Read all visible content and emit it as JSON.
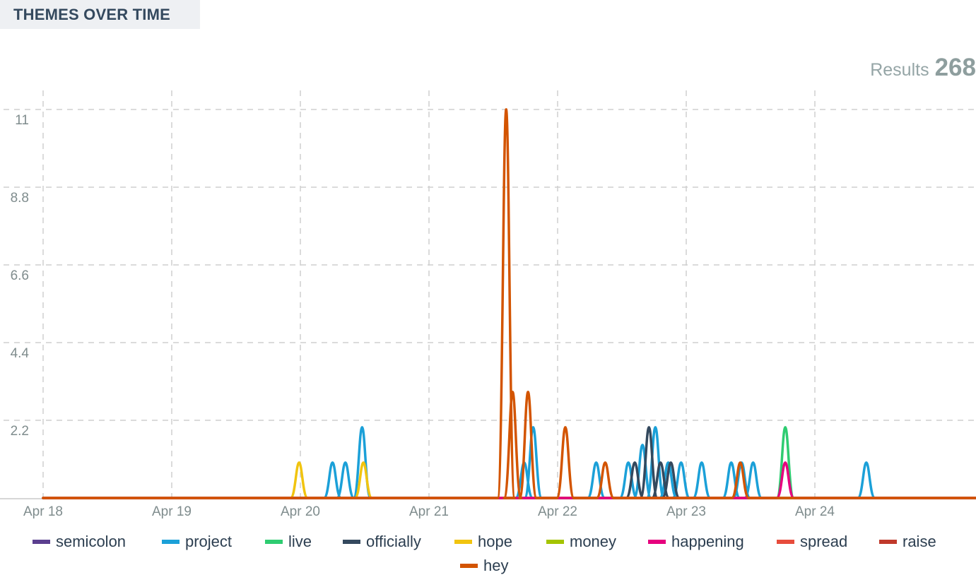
{
  "header": {
    "title": "THEMES OVER TIME"
  },
  "results": {
    "label": "Results",
    "count": "268"
  },
  "chart_data": {
    "type": "line",
    "title": "THEMES OVER TIME",
    "xlabel": "",
    "ylabel": "",
    "x_ticks": [
      "Apr 18",
      "Apr 19",
      "Apr 20",
      "Apr 21",
      "Apr 22",
      "Apr 23",
      "Apr 24"
    ],
    "y_ticks": [
      "2.2",
      "4.4",
      "6.6",
      "8.8",
      "11"
    ],
    "xlim_days": [
      0,
      7.25
    ],
    "ylim": [
      0,
      11
    ],
    "grid": true,
    "legend_position": "bottom",
    "series": [
      {
        "name": "semicolon",
        "color": "#5b3f8f",
        "points": []
      },
      {
        "name": "project",
        "color": "#1ba0d8",
        "points": [
          [
            2.25,
            1
          ],
          [
            2.35,
            1
          ],
          [
            2.48,
            2
          ],
          [
            3.74,
            1
          ],
          [
            3.81,
            2
          ],
          [
            4.3,
            1
          ],
          [
            4.55,
            1
          ],
          [
            4.66,
            1.5
          ],
          [
            4.76,
            2
          ],
          [
            4.86,
            1
          ],
          [
            4.96,
            1
          ],
          [
            5.12,
            1
          ],
          [
            5.35,
            1
          ],
          [
            5.43,
            1
          ],
          [
            5.52,
            1
          ],
          [
            6.4,
            1
          ]
        ]
      },
      {
        "name": "live",
        "color": "#2ecc71",
        "points": [
          [
            5.77,
            2
          ]
        ]
      },
      {
        "name": "officially",
        "color": "#34495e",
        "points": [
          [
            4.6,
            1
          ],
          [
            4.71,
            2
          ],
          [
            4.8,
            1
          ],
          [
            4.88,
            1
          ],
          [
            5.02,
            0
          ]
        ]
      },
      {
        "name": "hope",
        "color": "#f1c40f",
        "points": [
          [
            1.99,
            1
          ],
          [
            2.49,
            1
          ]
        ]
      },
      {
        "name": "money",
        "color": "#a4c400",
        "points": []
      },
      {
        "name": "happening",
        "color": "#e6007e",
        "points": [
          [
            5.77,
            1
          ]
        ]
      },
      {
        "name": "spread",
        "color": "#e74c3c",
        "points": []
      },
      {
        "name": "raise",
        "color": "#c0392b",
        "points": []
      },
      {
        "name": "hey",
        "color": "#d35400",
        "points": [
          [
            3.6,
            11
          ],
          [
            3.65,
            3
          ],
          [
            3.77,
            3
          ],
          [
            4.06,
            2
          ],
          [
            4.37,
            1
          ],
          [
            5.42,
            1
          ]
        ]
      }
    ]
  },
  "legend": [
    {
      "name": "semicolon",
      "color": "#5b3f8f"
    },
    {
      "name": "project",
      "color": "#1ba0d8"
    },
    {
      "name": "live",
      "color": "#2ecc71"
    },
    {
      "name": "officially",
      "color": "#34495e"
    },
    {
      "name": "hope",
      "color": "#f1c40f"
    },
    {
      "name": "money",
      "color": "#a4c400"
    },
    {
      "name": "happening",
      "color": "#e6007e"
    },
    {
      "name": "spread",
      "color": "#e74c3c"
    },
    {
      "name": "raise",
      "color": "#c0392b"
    },
    {
      "name": "hey",
      "color": "#d35400"
    }
  ]
}
